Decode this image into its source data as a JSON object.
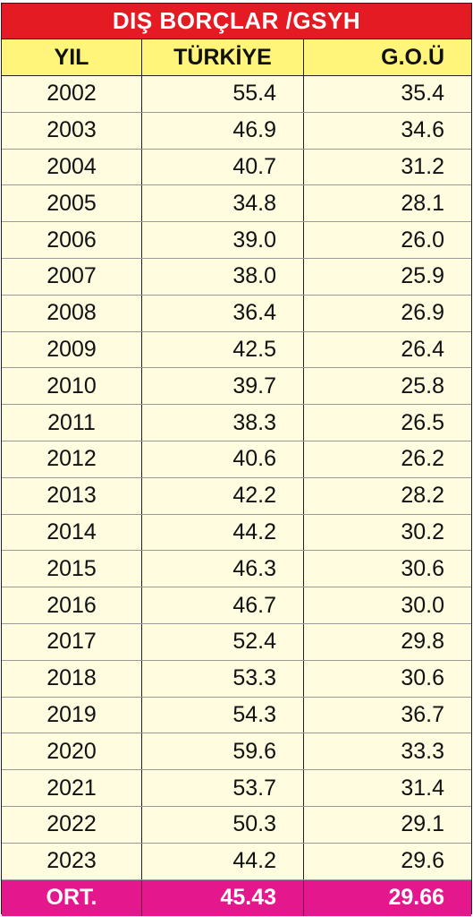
{
  "title": "DIŞ BORÇLAR /GSYH",
  "headers": {
    "year": "YIL",
    "turkiye": "TÜRKİYE",
    "gou": "G.O.Ü"
  },
  "rows": [
    {
      "year": "2002",
      "turkiye": "55.4",
      "gou": "35.4"
    },
    {
      "year": "2003",
      "turkiye": "46.9",
      "gou": "34.6"
    },
    {
      "year": "2004",
      "turkiye": "40.7",
      "gou": "31.2"
    },
    {
      "year": "2005",
      "turkiye": "34.8",
      "gou": "28.1"
    },
    {
      "year": "2006",
      "turkiye": "39.0",
      "gou": "26.0"
    },
    {
      "year": "2007",
      "turkiye": "38.0",
      "gou": "25.9"
    },
    {
      "year": "2008",
      "turkiye": "36.4",
      "gou": "26.9"
    },
    {
      "year": "2009",
      "turkiye": "42.5",
      "gou": "26.4"
    },
    {
      "year": "2010",
      "turkiye": "39.7",
      "gou": "25.8"
    },
    {
      "year": "2011",
      "turkiye": "38.3",
      "gou": "26.5"
    },
    {
      "year": "2012",
      "turkiye": "40.6",
      "gou": "26.2"
    },
    {
      "year": "2013",
      "turkiye": "42.2",
      "gou": "28.2"
    },
    {
      "year": "2014",
      "turkiye": "44.2",
      "gou": "30.2"
    },
    {
      "year": "2015",
      "turkiye": "46.3",
      "gou": "30.6"
    },
    {
      "year": "2016",
      "turkiye": "46.7",
      "gou": "30.0"
    },
    {
      "year": "2017",
      "turkiye": "52.4",
      "gou": "29.8"
    },
    {
      "year": "2018",
      "turkiye": "53.3",
      "gou": "30.6"
    },
    {
      "year": "2019",
      "turkiye": "54.3",
      "gou": "36.7"
    },
    {
      "year": "2020",
      "turkiye": "59.6",
      "gou": "33.3"
    },
    {
      "year": "2021",
      "turkiye": "53.7",
      "gou": "31.4"
    },
    {
      "year": "2022",
      "turkiye": "50.3",
      "gou": "29.1"
    },
    {
      "year": "2023",
      "turkiye": "44.2",
      "gou": "29.6"
    }
  ],
  "footer": {
    "label": "ORT.",
    "turkiye": "45.43",
    "gou": "29.66"
  },
  "colors": {
    "title_bg": "#e51b24",
    "header_bg": "#fff57a",
    "body_bg": "#fffce0",
    "footer_bg": "#e5178d"
  },
  "chart_data": {
    "type": "table",
    "title": "DIŞ BORÇLAR /GSYH",
    "columns": [
      "YIL",
      "TÜRKİYE",
      "G.O.Ü"
    ],
    "categories": [
      "2002",
      "2003",
      "2004",
      "2005",
      "2006",
      "2007",
      "2008",
      "2009",
      "2010",
      "2011",
      "2012",
      "2013",
      "2014",
      "2015",
      "2016",
      "2017",
      "2018",
      "2019",
      "2020",
      "2021",
      "2022",
      "2023"
    ],
    "series": [
      {
        "name": "TÜRKİYE",
        "values": [
          55.4,
          46.9,
          40.7,
          34.8,
          39.0,
          38.0,
          36.4,
          42.5,
          39.7,
          38.3,
          40.6,
          42.2,
          44.2,
          46.3,
          46.7,
          52.4,
          53.3,
          54.3,
          59.6,
          53.7,
          50.3,
          44.2
        ]
      },
      {
        "name": "G.O.Ü",
        "values": [
          35.4,
          34.6,
          31.2,
          28.1,
          26.0,
          25.9,
          26.9,
          26.4,
          25.8,
          26.5,
          26.2,
          28.2,
          30.2,
          30.6,
          30.0,
          29.8,
          30.6,
          36.7,
          33.3,
          31.4,
          29.1,
          29.6
        ]
      }
    ],
    "summary": {
      "label": "ORT.",
      "values": [
        45.43,
        29.66
      ]
    }
  }
}
